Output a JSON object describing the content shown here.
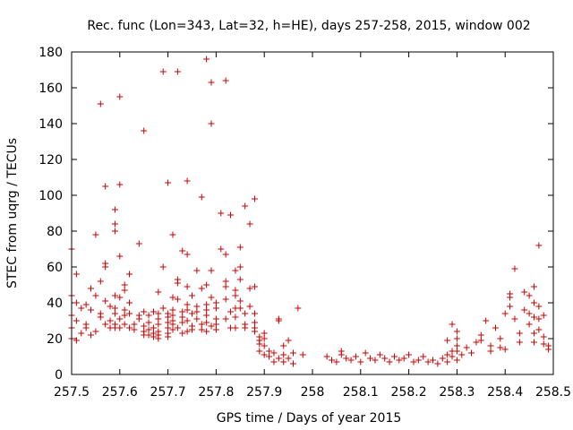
{
  "chart_data": {
    "type": "scatter",
    "title": "Rec. func (Lon=343, Lat=32, h=HE), days 257-258, 2015, window 002",
    "xlabel": "GPS time / Days of year 2015",
    "ylabel": "STEC from uqrg / TECUs",
    "xlim": [
      257.5,
      258.5
    ],
    "ylim": [
      0,
      180
    ],
    "xticks": [
      257.5,
      257.6,
      257.7,
      257.8,
      257.9,
      258,
      258.1,
      258.2,
      258.3,
      258.4,
      258.5
    ],
    "xtick_labels": [
      "257.5",
      "257.6",
      "257.7",
      "257.8",
      "257.9",
      "258",
      "258.1",
      "258.2",
      "258.3",
      "258.4",
      "258.5"
    ],
    "yticks": [
      0,
      20,
      40,
      60,
      80,
      100,
      120,
      140,
      160,
      180
    ],
    "ytick_labels": [
      "0",
      "20",
      "40",
      "60",
      "80",
      "100",
      "120",
      "140",
      "160",
      "180"
    ],
    "marker": "+",
    "color": "#cc0000",
    "grid": false,
    "legend": "none",
    "series": [
      {
        "name": "STEC",
        "points": [
          [
            257.5,
            70
          ],
          [
            257.51,
            56
          ],
          [
            257.5,
            44
          ],
          [
            257.51,
            40
          ],
          [
            257.52,
            37
          ],
          [
            257.5,
            33
          ],
          [
            257.51,
            30
          ],
          [
            257.53,
            28
          ],
          [
            257.5,
            26
          ],
          [
            257.52,
            23
          ],
          [
            257.5,
            20
          ],
          [
            257.51,
            19
          ],
          [
            257.53,
            39
          ],
          [
            257.54,
            48
          ],
          [
            257.55,
            78
          ],
          [
            257.55,
            44
          ],
          [
            257.54,
            36
          ],
          [
            257.56,
            32
          ],
          [
            257.53,
            26
          ],
          [
            257.55,
            24
          ],
          [
            257.54,
            22
          ],
          [
            257.56,
            151
          ],
          [
            257.56,
            52
          ],
          [
            257.57,
            105
          ],
          [
            257.57,
            62
          ],
          [
            257.57,
            60
          ],
          [
            257.57,
            41
          ],
          [
            257.58,
            38
          ],
          [
            257.56,
            34
          ],
          [
            257.58,
            30
          ],
          [
            257.57,
            28
          ],
          [
            257.58,
            26
          ],
          [
            257.59,
            92
          ],
          [
            257.59,
            84
          ],
          [
            257.59,
            80
          ],
          [
            257.59,
            44
          ],
          [
            257.59,
            37
          ],
          [
            257.59,
            34
          ],
          [
            257.59,
            28
          ],
          [
            257.59,
            26
          ],
          [
            257.6,
            155
          ],
          [
            257.6,
            106
          ],
          [
            257.6,
            66
          ],
          [
            257.6,
            43
          ],
          [
            257.61,
            36
          ],
          [
            257.61,
            33
          ],
          [
            257.6,
            31
          ],
          [
            257.61,
            28
          ],
          [
            257.6,
            26
          ],
          [
            257.61,
            50
          ],
          [
            257.61,
            47
          ],
          [
            257.62,
            56
          ],
          [
            257.62,
            40
          ],
          [
            257.62,
            34
          ],
          [
            257.63,
            28
          ],
          [
            257.62,
            26
          ],
          [
            257.63,
            25
          ],
          [
            257.64,
            73
          ],
          [
            257.64,
            33
          ],
          [
            257.64,
            31
          ],
          [
            257.65,
            35
          ],
          [
            257.65,
            27
          ],
          [
            257.65,
            24
          ],
          [
            257.65,
            22
          ],
          [
            257.65,
            136
          ],
          [
            257.66,
            33
          ],
          [
            257.67,
            35
          ],
          [
            257.66,
            29
          ],
          [
            257.67,
            26
          ],
          [
            257.66,
            25
          ],
          [
            257.67,
            23
          ],
          [
            257.66,
            22
          ],
          [
            257.67,
            21
          ],
          [
            257.68,
            46
          ],
          [
            257.68,
            34
          ],
          [
            257.68,
            31
          ],
          [
            257.68,
            28
          ],
          [
            257.68,
            24
          ],
          [
            257.68,
            22
          ],
          [
            257.68,
            20
          ],
          [
            257.69,
            169
          ],
          [
            257.69,
            60
          ],
          [
            257.69,
            37
          ],
          [
            257.7,
            34
          ],
          [
            257.7,
            32
          ],
          [
            257.7,
            29
          ],
          [
            257.7,
            26
          ],
          [
            257.7,
            23
          ],
          [
            257.7,
            21
          ],
          [
            257.7,
            107
          ],
          [
            257.71,
            78
          ],
          [
            257.71,
            43
          ],
          [
            257.71,
            36
          ],
          [
            257.71,
            33
          ],
          [
            257.71,
            30
          ],
          [
            257.71,
            28
          ],
          [
            257.71,
            25
          ],
          [
            257.72,
            169
          ],
          [
            257.72,
            53
          ],
          [
            257.72,
            51
          ],
          [
            257.72,
            42
          ],
          [
            257.73,
            35
          ],
          [
            257.73,
            32
          ],
          [
            257.73,
            29
          ],
          [
            257.72,
            26
          ],
          [
            257.73,
            23
          ],
          [
            257.73,
            69
          ],
          [
            257.74,
            67
          ],
          [
            257.74,
            49
          ],
          [
            257.74,
            39
          ],
          [
            257.74,
            36
          ],
          [
            257.74,
            30
          ],
          [
            257.75,
            27
          ],
          [
            257.74,
            24
          ],
          [
            257.74,
            108
          ],
          [
            257.75,
            44
          ],
          [
            257.75,
            34
          ],
          [
            257.76,
            31
          ],
          [
            257.75,
            25
          ],
          [
            257.76,
            58
          ],
          [
            257.77,
            48
          ],
          [
            257.76,
            38
          ],
          [
            257.76,
            35
          ],
          [
            257.77,
            28
          ],
          [
            257.77,
            25
          ],
          [
            257.77,
            99
          ],
          [
            257.78,
            176
          ],
          [
            257.78,
            50
          ],
          [
            257.78,
            39
          ],
          [
            257.78,
            36
          ],
          [
            257.78,
            33
          ],
          [
            257.78,
            29
          ],
          [
            257.79,
            27
          ],
          [
            257.78,
            24
          ],
          [
            257.79,
            163
          ],
          [
            257.79,
            140
          ],
          [
            257.79,
            58
          ],
          [
            257.79,
            43
          ],
          [
            257.8,
            40
          ],
          [
            257.8,
            37
          ],
          [
            257.8,
            31
          ],
          [
            257.8,
            28
          ],
          [
            257.8,
            25
          ],
          [
            257.81,
            90
          ],
          [
            257.81,
            70
          ],
          [
            257.82,
            164
          ],
          [
            257.82,
            67
          ],
          [
            257.82,
            52
          ],
          [
            257.82,
            49
          ],
          [
            257.82,
            42
          ],
          [
            257.83,
            35
          ],
          [
            257.82,
            31
          ],
          [
            257.83,
            26
          ],
          [
            257.83,
            89
          ],
          [
            257.84,
            58
          ],
          [
            257.84,
            47
          ],
          [
            257.84,
            44
          ],
          [
            257.84,
            37
          ],
          [
            257.84,
            32
          ],
          [
            257.84,
            26
          ],
          [
            257.85,
            71
          ],
          [
            257.85,
            60
          ],
          [
            257.85,
            53
          ],
          [
            257.85,
            41
          ],
          [
            257.85,
            37
          ],
          [
            257.86,
            34
          ],
          [
            257.86,
            28
          ],
          [
            257.86,
            26
          ],
          [
            257.86,
            94
          ],
          [
            257.87,
            84
          ],
          [
            257.87,
            48
          ],
          [
            257.87,
            38
          ],
          [
            257.88,
            98
          ],
          [
            257.88,
            49
          ],
          [
            257.88,
            34
          ],
          [
            257.88,
            29
          ],
          [
            257.88,
            26
          ],
          [
            257.88,
            24
          ],
          [
            257.89,
            21
          ],
          [
            257.89,
            19
          ],
          [
            257.89,
            17
          ],
          [
            257.9,
            23
          ],
          [
            257.9,
            20
          ],
          [
            257.9,
            16
          ],
          [
            257.89,
            13
          ],
          [
            257.9,
            11
          ],
          [
            257.91,
            13
          ],
          [
            257.91,
            10
          ],
          [
            257.92,
            7
          ],
          [
            257.92,
            12
          ],
          [
            257.93,
            9
          ],
          [
            257.93,
            31
          ],
          [
            257.93,
            30
          ],
          [
            257.94,
            16
          ],
          [
            257.94,
            11
          ],
          [
            257.94,
            7
          ],
          [
            257.95,
            19
          ],
          [
            257.95,
            9
          ],
          [
            257.96,
            12
          ],
          [
            257.96,
            6
          ],
          [
            257.97,
            37
          ],
          [
            257.98,
            11
          ],
          [
            258.03,
            10
          ],
          [
            258.04,
            8
          ],
          [
            258.05,
            7
          ],
          [
            258.06,
            13
          ],
          [
            258.06,
            11
          ],
          [
            258.07,
            9
          ],
          [
            258.08,
            8
          ],
          [
            258.09,
            10
          ],
          [
            258.1,
            7
          ],
          [
            258.11,
            12
          ],
          [
            258.12,
            9
          ],
          [
            258.13,
            8
          ],
          [
            258.14,
            11
          ],
          [
            258.15,
            9
          ],
          [
            258.16,
            7
          ],
          [
            258.17,
            10
          ],
          [
            258.18,
            8
          ],
          [
            258.19,
            9
          ],
          [
            258.2,
            11
          ],
          [
            258.21,
            7
          ],
          [
            258.22,
            8
          ],
          [
            258.23,
            10
          ],
          [
            258.24,
            7
          ],
          [
            258.25,
            8
          ],
          [
            258.26,
            6
          ],
          [
            258.27,
            9
          ],
          [
            258.28,
            11
          ],
          [
            258.28,
            7
          ],
          [
            258.28,
            19
          ],
          [
            258.29,
            13
          ],
          [
            258.29,
            10
          ],
          [
            258.29,
            28
          ],
          [
            258.3,
            24
          ],
          [
            258.3,
            20
          ],
          [
            258.3,
            16
          ],
          [
            258.3,
            13
          ],
          [
            258.3,
            8
          ],
          [
            258.31,
            11
          ],
          [
            258.32,
            15
          ],
          [
            258.33,
            12
          ],
          [
            258.34,
            18
          ],
          [
            258.35,
            22
          ],
          [
            258.35,
            19
          ],
          [
            258.36,
            30
          ],
          [
            258.37,
            16
          ],
          [
            258.37,
            13
          ],
          [
            258.38,
            26
          ],
          [
            258.39,
            20
          ],
          [
            258.39,
            15
          ],
          [
            258.4,
            34
          ],
          [
            258.4,
            14
          ],
          [
            258.41,
            45
          ],
          [
            258.41,
            43
          ],
          [
            258.41,
            38
          ],
          [
            258.42,
            59
          ],
          [
            258.42,
            31
          ],
          [
            258.43,
            23
          ],
          [
            258.43,
            18
          ],
          [
            258.44,
            46
          ],
          [
            258.44,
            36
          ],
          [
            258.45,
            44
          ],
          [
            258.45,
            34
          ],
          [
            258.45,
            28
          ],
          [
            258.46,
            49
          ],
          [
            258.46,
            40
          ],
          [
            258.46,
            32
          ],
          [
            258.46,
            23
          ],
          [
            258.46,
            18
          ],
          [
            258.47,
            72
          ],
          [
            258.47,
            38
          ],
          [
            258.47,
            31
          ],
          [
            258.47,
            25
          ],
          [
            258.48,
            33
          ],
          [
            258.48,
            21
          ],
          [
            258.48,
            17
          ],
          [
            258.49,
            16
          ],
          [
            258.49,
            14
          ]
        ]
      }
    ]
  }
}
